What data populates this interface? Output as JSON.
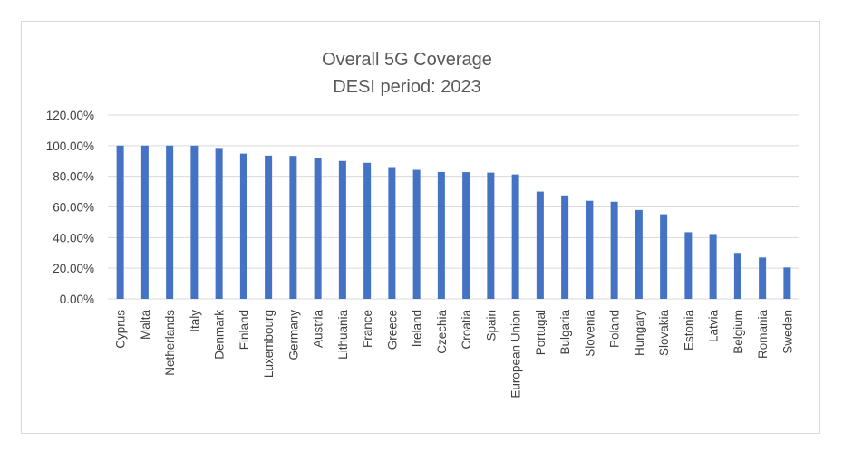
{
  "chart_data": {
    "type": "bar",
    "title": "Overall 5G Coverage",
    "subtitle": "DESI period: 2023",
    "xlabel": "",
    "ylabel": "",
    "ylim": [
      0,
      120
    ],
    "yticks": [
      "0.00%",
      "20.00%",
      "40.00%",
      "60.00%",
      "80.00%",
      "100.00%",
      "120.00%"
    ],
    "grid": true,
    "legend": "none",
    "bar_color": "#4472C4",
    "categories": [
      "Cyprus",
      "Malta",
      "Netherlands",
      "Italy",
      "Denmark",
      "Finland",
      "Luxembourg",
      "Germany",
      "Austria",
      "Lithuania",
      "France",
      "Greece",
      "Ireland",
      "Czechia",
      "Croatia",
      "Spain",
      "European Union",
      "Portugal",
      "Bulgaria",
      "Slovenia",
      "Poland",
      "Hungary",
      "Slovakia",
      "Estonia",
      "Latvia",
      "Belgium",
      "Romania",
      "Sweden"
    ],
    "values": [
      100,
      100,
      100,
      100,
      98.5,
      94.8,
      93.5,
      93.3,
      91.7,
      90,
      88.8,
      86,
      84.2,
      82.8,
      82.7,
      82.4,
      81.2,
      70,
      67.5,
      64,
      63.4,
      58,
      55.2,
      43.5,
      42.3,
      30,
      27,
      20.5
    ]
  }
}
